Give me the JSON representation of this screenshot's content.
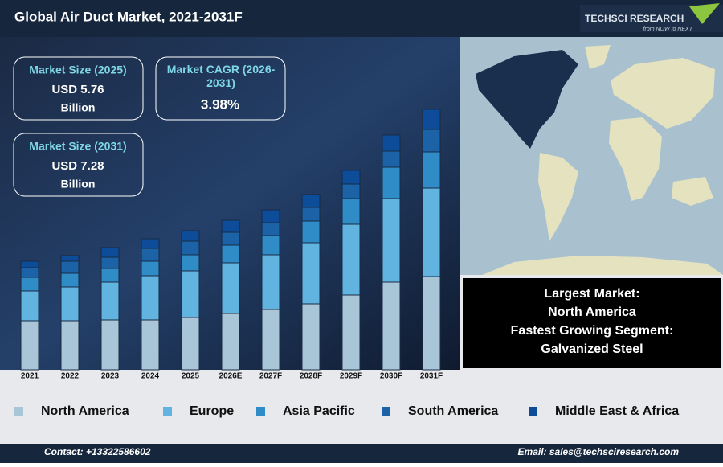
{
  "header": {
    "title": "Global Air Duct Market, 2021-2031F",
    "logo": "TECHSCI RESEARCH",
    "tagline": "from NOW to NEXT"
  },
  "stats": [
    {
      "label": "Market Size (2025)",
      "value": "USD 5.76",
      "unit": "Billion"
    },
    {
      "label": "Market CAGR (2026-2031)",
      "value": "3.98%"
    },
    {
      "label": "Market Size (2031)",
      "value": "USD 7.28",
      "unit": "Billion"
    }
  ],
  "highlights": [
    "Largest Market:",
    "North America",
    "Fastest Growing Segment:",
    "Galvanized Steel"
  ],
  "footer": {
    "contact": "Contact: +13322586602",
    "email": "Email: sales@techsciresearch.com"
  },
  "chart_data": {
    "type": "stacked_bar",
    "categories": [
      "2021",
      "2022",
      "2023",
      "2024",
      "2025",
      "2026E",
      "2027F",
      "2028F",
      "2029F",
      "2030F",
      "2031F"
    ],
    "series": [
      {
        "name": "North America",
        "color": "#a9c6d8",
        "values": [
          61,
          61,
          62,
          62,
          65,
          70,
          75,
          82,
          93,
          109,
          116
        ]
      },
      {
        "name": "Europe",
        "color": "#62b4e0",
        "values": [
          37,
          42,
          47,
          55,
          58,
          63,
          68,
          76,
          88,
          104,
          110
        ]
      },
      {
        "name": "Asia Pacific",
        "color": "#2f8cc6",
        "values": [
          17,
          17,
          17,
          18,
          20,
          22,
          24,
          27,
          32,
          39,
          45
        ]
      },
      {
        "name": "South America",
        "color": "#1b63a6",
        "values": [
          12,
          15,
          14,
          16,
          17,
          16,
          16,
          17,
          18,
          20,
          28
        ]
      },
      {
        "name": "Middle East & Africa",
        "color": "#0c4c98",
        "values": [
          8,
          7,
          12,
          12,
          13,
          15,
          16,
          16,
          17,
          20,
          25
        ]
      }
    ]
  }
}
